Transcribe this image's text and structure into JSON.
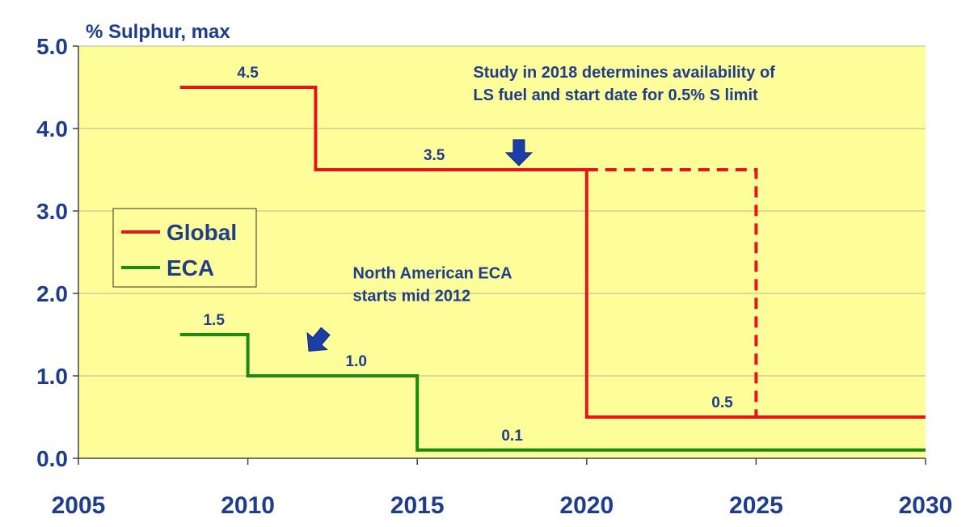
{
  "chart_data": {
    "type": "line",
    "ylabel": "% Sulphur, max",
    "xlim": [
      2005,
      2030
    ],
    "ylim": [
      0,
      5
    ],
    "x_ticks": [
      "2005",
      "2010",
      "2015",
      "2020",
      "2025",
      "2030"
    ],
    "y_ticks": [
      "0.0",
      "1.0",
      "2.0",
      "3.0",
      "4.0",
      "5.0"
    ],
    "grid": true,
    "plot_background": "#fdfd9a",
    "legend_position": "left-middle",
    "series": [
      {
        "name": "Global",
        "color": "#e8141b",
        "points": [
          [
            2008,
            4.5
          ],
          [
            2012,
            4.5
          ],
          [
            2012,
            3.5
          ],
          [
            2020,
            3.5
          ],
          [
            2020,
            0.5
          ],
          [
            2030,
            0.5
          ]
        ],
        "dashed_points": [
          [
            2020,
            3.5
          ],
          [
            2025,
            3.5
          ],
          [
            2025,
            0.5
          ]
        ]
      },
      {
        "name": "ECA",
        "color": "#1a8a12",
        "points": [
          [
            2008,
            1.5
          ],
          [
            2010,
            1.5
          ],
          [
            2010,
            1.0
          ],
          [
            2015,
            1.0
          ],
          [
            2015,
            0.1
          ],
          [
            2030,
            0.1
          ]
        ]
      }
    ],
    "data_labels": [
      {
        "text": "4.5",
        "x": 2010,
        "y": 4.5
      },
      {
        "text": "3.5",
        "x": 2015.5,
        "y": 3.5
      },
      {
        "text": "0.5",
        "x": 2024,
        "y": 0.5
      },
      {
        "text": "1.5",
        "x": 2009,
        "y": 1.5
      },
      {
        "text": "1.0",
        "x": 2013.2,
        "y": 1.0
      },
      {
        "text": "0.1",
        "x": 2017.8,
        "y": 0.1
      }
    ],
    "annotations": [
      {
        "lines": [
          "Study in 2018 determines availability of",
          "LS fuel and start date for 0.5% S limit"
        ],
        "x": 2016.65,
        "y": 4.62,
        "arrow": {
          "x": 2018,
          "y": 3.55,
          "direction": "down"
        }
      },
      {
        "lines": [
          "North American ECA",
          "starts mid 2012"
        ],
        "x": 2013.1,
        "y": 2.18,
        "arrow": {
          "x": 2011.8,
          "y": 1.3,
          "direction": "down-left"
        }
      }
    ]
  }
}
